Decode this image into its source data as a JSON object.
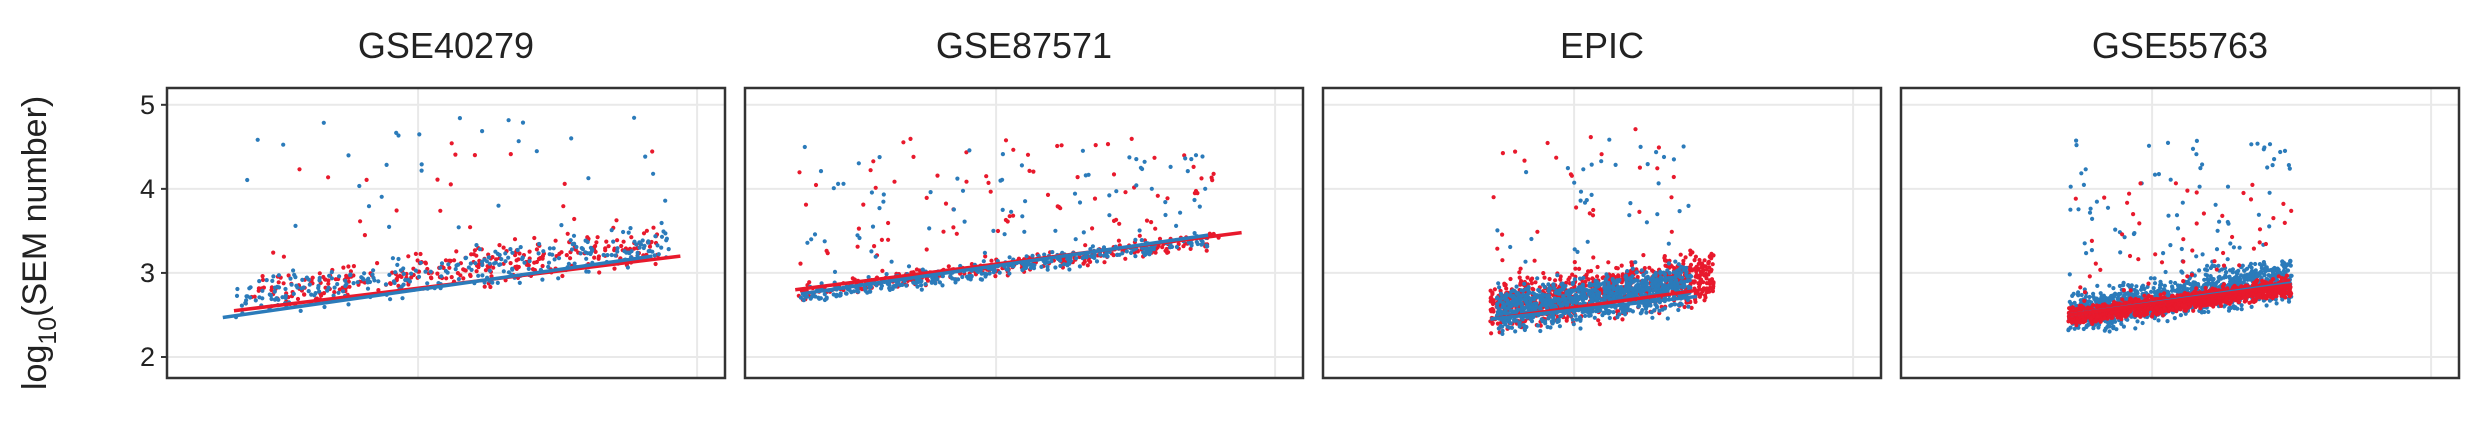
{
  "ylabel": {
    "base": "log",
    "sub": "10",
    "rest": "(SEM number)"
  },
  "colors": {
    "red": "#e8192c",
    "blue": "#2b7bba",
    "grid": "#e9e9e9",
    "frame": "#333333"
  },
  "chart_data": [
    {
      "type": "scatter",
      "title": "GSE40279",
      "ylim": [
        1.75,
        5.2
      ],
      "yticks": [
        2,
        3,
        4,
        5
      ],
      "grid": true,
      "series": [
        {
          "color": "red",
          "fit": [
            [
              0.12,
              2.55
            ],
            [
              0.92,
              3.2
            ]
          ],
          "cloud": {
            "n": 330,
            "x": [
              0.15,
              0.88
            ],
            "ymin": 2.2,
            "center": 2.75,
            "slope": 0.6,
            "spread": 0.33,
            "outliers": 0.09,
            "ymax": 4.6
          }
        },
        {
          "color": "blue",
          "fit": [
            [
              0.1,
              2.47
            ],
            [
              0.87,
              3.2
            ]
          ],
          "cloud": {
            "n": 330,
            "x": [
              0.12,
              0.9
            ],
            "ymin": 2.2,
            "center": 2.72,
            "slope": 0.62,
            "spread": 0.33,
            "outliers": 0.1,
            "ymax": 4.85
          }
        }
      ]
    },
    {
      "type": "scatter",
      "title": "GSE87571",
      "ylim": [
        1.75,
        5.2
      ],
      "yticks": [
        2,
        3,
        4,
        5
      ],
      "grid": true,
      "series": [
        {
          "color": "red",
          "fit": [
            [
              0.09,
              2.8
            ],
            [
              0.89,
              3.48
            ]
          ],
          "cloud": {
            "n": 380,
            "x": [
              0.09,
              0.85
            ],
            "ymin": 2.6,
            "center": 2.75,
            "slope": 0.65,
            "spread": 0.15,
            "outliers": 0.22,
            "ymax": 4.6
          }
        },
        {
          "color": "blue",
          "fit": [
            [
              0.1,
              2.75
            ],
            [
              0.83,
              3.45
            ]
          ],
          "cloud": {
            "n": 420,
            "x": [
              0.1,
              0.83
            ],
            "ymin": 2.6,
            "center": 2.72,
            "slope": 0.68,
            "spread": 0.14,
            "outliers": 0.2,
            "ymax": 4.5
          }
        }
      ]
    },
    {
      "type": "scatter",
      "title": "EPIC",
      "ylim": [
        1.75,
        5.2
      ],
      "yticks": [
        2,
        3,
        4,
        5
      ],
      "grid": true,
      "series": [
        {
          "color": "red",
          "fit": [
            [
              0.3,
              2.45
            ],
            [
              0.7,
              2.82
            ]
          ],
          "cloud": {
            "n": 950,
            "x": [
              0.3,
              0.7
            ],
            "ymin": 2.1,
            "center": 2.6,
            "slope": 0.35,
            "spread": 0.42,
            "outliers": 0.05,
            "ymax": 4.8
          }
        },
        {
          "color": "blue",
          "fit": [
            [
              0.3,
              2.45
            ],
            [
              0.67,
              2.72
            ]
          ],
          "cloud": {
            "n": 1050,
            "x": [
              0.31,
              0.66
            ],
            "ymin": 2.1,
            "center": 2.55,
            "slope": 0.3,
            "spread": 0.38,
            "outliers": 0.05,
            "ymax": 4.6
          }
        }
      ]
    },
    {
      "type": "scatter",
      "title": "GSE55763",
      "ylim": [
        1.75,
        5.2
      ],
      "yticks": [
        2,
        3,
        4,
        5
      ],
      "grid": true,
      "series": [
        {
          "color": "blue",
          "fit": [
            [
              0.3,
              2.5
            ],
            [
              0.7,
              2.88
            ]
          ],
          "cloud": {
            "n": 1250,
            "x": [
              0.3,
              0.7
            ],
            "ymin": 2.3,
            "center": 2.5,
            "slope": 0.45,
            "spread": 0.35,
            "outliers": 0.06,
            "ymax": 4.6
          }
        },
        {
          "color": "red",
          "fit": [
            [
              0.3,
              2.5
            ],
            [
              0.7,
              2.86
            ]
          ],
          "cloud": {
            "n": 1250,
            "x": [
              0.3,
              0.7
            ],
            "ymin": 2.3,
            "center": 2.48,
            "slope": 0.35,
            "spread": 0.16,
            "outliers": 0.05,
            "ymax": 4.1
          }
        }
      ]
    }
  ]
}
